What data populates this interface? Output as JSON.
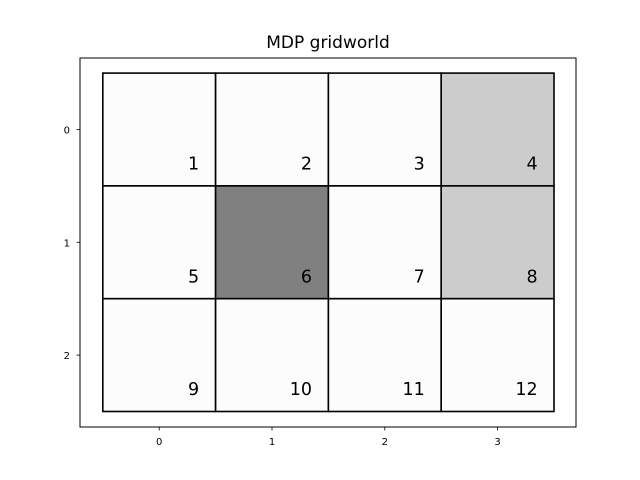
{
  "chart_data": {
    "type": "heatmap",
    "title": "MDP gridworld",
    "xlabel": "",
    "ylabel": "",
    "x_ticks": [
      "0",
      "1",
      "2",
      "3"
    ],
    "y_ticks": [
      "0",
      "1",
      "2"
    ],
    "xlim": [
      -0.5,
      3.5
    ],
    "ylim": [
      2.5,
      -0.5
    ],
    "grid": false,
    "cells": [
      {
        "label": "1",
        "row": 0,
        "col": 0,
        "color": "#fcfcfc"
      },
      {
        "label": "2",
        "row": 0,
        "col": 1,
        "color": "#fcfcfc"
      },
      {
        "label": "3",
        "row": 0,
        "col": 2,
        "color": "#fcfcfc"
      },
      {
        "label": "4",
        "row": 0,
        "col": 3,
        "color": "#cccccc"
      },
      {
        "label": "5",
        "row": 1,
        "col": 0,
        "color": "#fcfcfc"
      },
      {
        "label": "6",
        "row": 1,
        "col": 1,
        "color": "#808080"
      },
      {
        "label": "7",
        "row": 1,
        "col": 2,
        "color": "#fcfcfc"
      },
      {
        "label": "8",
        "row": 1,
        "col": 3,
        "color": "#cccccc"
      },
      {
        "label": "9",
        "row": 2,
        "col": 0,
        "color": "#fcfcfc"
      },
      {
        "label": "10",
        "row": 2,
        "col": 1,
        "color": "#fcfcfc"
      },
      {
        "label": "11",
        "row": 2,
        "col": 2,
        "color": "#fcfcfc"
      },
      {
        "label": "12",
        "row": 2,
        "col": 3,
        "color": "#fcfcfc"
      }
    ]
  }
}
